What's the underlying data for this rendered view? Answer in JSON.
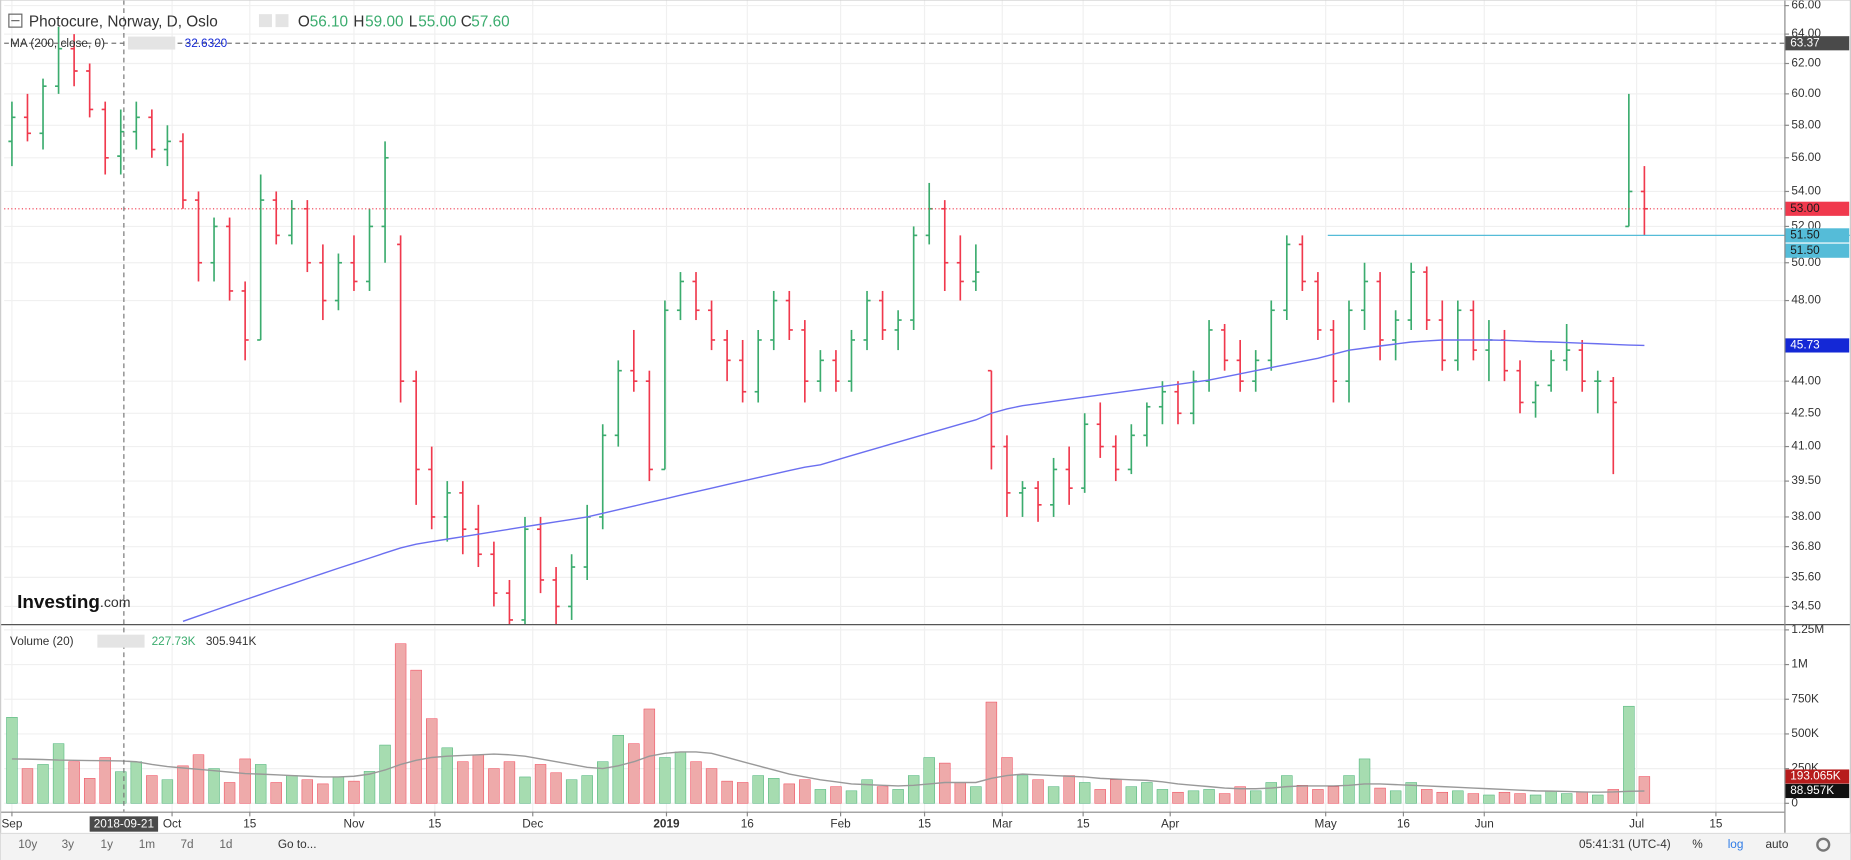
{
  "chart_data": {
    "type": "ohlc",
    "title": "Photocure, Norway, D, Oslo",
    "legend": {
      "o_key": "O",
      "o": "56.10",
      "h_key": "H",
      "h": "59.00",
      "l_key": "L",
      "l": "55.00",
      "c_key": "C",
      "c": "57.60"
    },
    "ma_title": "MA (200, close, 0)",
    "ma_value_text": "32.6320",
    "volume_title": "Volume (20)",
    "volume_value_text": "227.73K",
    "volume_ma_value_text": "305.941K",
    "logo": {
      "main": "Investing",
      "suffix": ".com"
    },
    "log_scale": true,
    "grid": true,
    "xlim": [
      -0.5,
      114
    ],
    "xticks": [
      {
        "value": 0,
        "label": "Sep"
      },
      {
        "value": 10.3,
        "label": "Oct"
      },
      {
        "value": 15.3,
        "label": "15"
      },
      {
        "value": 22,
        "label": "Nov"
      },
      {
        "value": 27.2,
        "label": "15"
      },
      {
        "value": 33.5,
        "label": "Dec"
      },
      {
        "value": 42.1,
        "label": "2019"
      },
      {
        "value": 47.3,
        "label": "16"
      },
      {
        "value": 53.3,
        "label": "Feb"
      },
      {
        "value": 58.7,
        "label": "15"
      },
      {
        "value": 63.7,
        "label": "Mar"
      },
      {
        "value": 68.9,
        "label": "15"
      },
      {
        "value": 74.5,
        "label": "Apr"
      },
      {
        "value": 84.5,
        "label": "May"
      },
      {
        "value": 89.5,
        "label": "16"
      },
      {
        "value": 94.7,
        "label": "Jun"
      },
      {
        "value": 104.5,
        "label": "Jul"
      },
      {
        "value": 109.6,
        "label": "15"
      }
    ],
    "ylim": [
      33.85,
      66.4
    ],
    "yticks": [
      {
        "value": 34.5,
        "label": "34.50"
      },
      {
        "value": 35.6,
        "label": "35.60"
      },
      {
        "value": 36.8,
        "label": "36.80"
      },
      {
        "value": 38,
        "label": "38.00"
      },
      {
        "value": 39.5,
        "label": "39.50"
      },
      {
        "value": 41,
        "label": "41.00"
      },
      {
        "value": 42.5,
        "label": "42.50"
      },
      {
        "value": 44,
        "label": "44.00"
      },
      {
        "value": 48,
        "label": "48.00"
      },
      {
        "value": 50,
        "label": "50.00"
      },
      {
        "value": 52,
        "label": "52.00"
      },
      {
        "value": 54,
        "label": "54.00"
      },
      {
        "value": 56,
        "label": "56.00"
      },
      {
        "value": 58,
        "label": "58.00"
      },
      {
        "value": 60,
        "label": "60.00"
      },
      {
        "value": 62,
        "label": "62.00"
      },
      {
        "value": 64,
        "label": "64.00"
      },
      {
        "value": 66,
        "label": "66.00"
      }
    ],
    "vlim": [
      -60000,
      1275000
    ],
    "vticks": [
      0,
      {
        "value": 250000,
        "label": "250K"
      },
      {
        "value": 500000,
        "label": "500K"
      },
      {
        "value": 750000,
        "label": "750K"
      },
      {
        "value": 1000000,
        "label": "1M"
      },
      {
        "value": 1250000,
        "label": "1.25M"
      }
    ],
    "up_color": "#3bac6e",
    "down_color": "#f0394d",
    "vol_up_color": "#a6dcb0",
    "vol_down_color": "#eeaaaa",
    "open": [
      57,
      58.5,
      57.5,
      60.5,
      63,
      61.5,
      59,
      56.1,
      57.6,
      58.5,
      56.5,
      57,
      53.5,
      50,
      52,
      48.5,
      46,
      53.5,
      51.5,
      53,
      50,
      48,
      50,
      49,
      52,
      51,
      44,
      40,
      38,
      39,
      37.5,
      36.5,
      35,
      34,
      37.5,
      35.5,
      34.5,
      36,
      38,
      41.5,
      44.5,
      44,
      40,
      47.5,
      49,
      47.5,
      46,
      45,
      43.5,
      46,
      48,
      46.5,
      44,
      45,
      44,
      46,
      48,
      46.5,
      47,
      51.5,
      53,
      50,
      49,
      44.5,
      41,
      39,
      39.2,
      38.5,
      40,
      39.2,
      42,
      41,
      40,
      41.5,
      42.8,
      43.5,
      42.5,
      44,
      46.5,
      45,
      44,
      45,
      47.5,
      51,
      49,
      46.5,
      44,
      47.5,
      49,
      46,
      47,
      49.5,
      47,
      45,
      47.5,
      45.5,
      46,
      44.5,
      43,
      43.8,
      45,
      45.5,
      44,
      44,
      52,
      54
    ],
    "high": [
      59.5,
      60,
      61,
      64.5,
      64,
      62,
      59.5,
      59,
      59.5,
      59,
      58,
      57.5,
      54,
      52.5,
      52.5,
      49,
      55,
      54,
      53.5,
      53.5,
      51,
      50.5,
      51.5,
      53,
      57,
      51.5,
      44.5,
      41,
      39.5,
      39.5,
      38.5,
      37,
      35.5,
      38,
      38,
      36,
      36.5,
      38.5,
      42,
      45,
      46.5,
      44.5,
      48,
      49.5,
      49.5,
      48,
      46.5,
      46,
      46.5,
      48.5,
      48.5,
      47,
      45.5,
      45.5,
      46.5,
      48.5,
      48.5,
      47.5,
      52,
      54.5,
      53.5,
      51.5,
      51,
      44.5,
      41.5,
      39.5,
      39.5,
      40.5,
      41,
      42.5,
      43,
      41.5,
      42,
      43,
      44,
      44,
      44.5,
      47,
      46.8,
      46,
      45.5,
      48,
      51.5,
      51.5,
      49.5,
      47,
      48,
      50,
      49.5,
      47.5,
      50,
      49.8,
      48,
      48,
      48,
      47,
      46.5,
      45,
      44,
      45.5,
      46.8,
      46,
      44.5,
      44.2,
      60,
      55.5
    ],
    "low": [
      55.5,
      57,
      56.5,
      60,
      60.5,
      58.5,
      55,
      55,
      56.5,
      56,
      55.5,
      53,
      49,
      49,
      48,
      45,
      46,
      51,
      51,
      49.5,
      47,
      47.5,
      48.5,
      48.5,
      50,
      43,
      38.5,
      37.5,
      37,
      36.5,
      36,
      34.5,
      33.5,
      33.8,
      35,
      33.5,
      34,
      35.5,
      37.5,
      41,
      43.5,
      39.5,
      40,
      47,
      47,
      45.5,
      44,
      43,
      43,
      45.5,
      46,
      43,
      43.5,
      43.5,
      43.5,
      45.5,
      46,
      45.5,
      46.5,
      51,
      48.5,
      48,
      48.5,
      40,
      38,
      38,
      37.8,
      38,
      38.5,
      39,
      40.5,
      39.5,
      39.8,
      41,
      42,
      42,
      42,
      43.5,
      44.5,
      43.5,
      43.5,
      44.5,
      47,
      48.5,
      46,
      43,
      43,
      46.5,
      45,
      45,
      46.5,
      46.5,
      44.5,
      44.5,
      45,
      44,
      44,
      42.5,
      42.3,
      43.5,
      44.5,
      43.5,
      42.5,
      39.8,
      52,
      51.5
    ],
    "close": [
      58.5,
      57.5,
      60.5,
      63,
      61.5,
      59,
      56,
      57.6,
      58.5,
      56.5,
      57,
      53.5,
      50,
      52,
      48.5,
      46,
      53.5,
      51.5,
      53,
      50,
      48,
      50,
      49,
      52,
      56,
      44,
      40,
      38,
      39,
      37.5,
      36.5,
      35,
      34,
      37.5,
      35.5,
      34.5,
      36,
      38,
      41.5,
      44.5,
      44,
      40,
      47.5,
      49,
      47.5,
      46,
      45,
      43.5,
      46,
      48,
      46.5,
      44,
      45,
      44,
      46,
      48,
      46.5,
      47,
      51.5,
      53,
      50,
      49,
      49.5,
      41,
      39,
      39.2,
      38.5,
      40,
      39.2,
      42,
      41,
      40,
      41.5,
      42.8,
      43.5,
      42.5,
      44,
      46.5,
      45,
      44,
      45,
      47.5,
      51,
      49,
      46.5,
      44,
      47.5,
      49,
      46,
      47,
      49.5,
      47,
      45,
      47.5,
      45.5,
      46,
      44.5,
      43,
      43.8,
      45,
      45.5,
      44,
      44,
      43,
      54,
      53
    ],
    "ma": {
      "color": "#6b6ff0",
      "label": "45.73",
      "label_color": "#1428d6",
      "values": [
        null,
        null,
        null,
        null,
        null,
        null,
        null,
        null,
        null,
        null,
        null,
        33.95,
        34.15,
        34.35,
        34.55,
        34.75,
        34.95,
        35.15,
        35.35,
        35.55,
        35.75,
        35.95,
        36.15,
        36.35,
        36.55,
        36.75,
        36.9,
        37,
        37.1,
        37.2,
        37.3,
        37.4,
        37.5,
        37.6,
        37.7,
        37.8,
        37.9,
        38,
        38.15,
        38.3,
        38.45,
        38.6,
        38.75,
        38.9,
        39.05,
        39.2,
        39.35,
        39.5,
        39.65,
        39.8,
        39.95,
        40.1,
        40.2,
        40.4,
        40.6,
        40.8,
        41,
        41.2,
        41.4,
        41.6,
        41.8,
        42,
        42.2,
        42.5,
        42.7,
        42.85,
        42.95,
        43.05,
        43.15,
        43.25,
        43.35,
        43.45,
        43.55,
        43.65,
        43.75,
        43.85,
        43.95,
        44.05,
        44.2,
        44.35,
        44.5,
        44.65,
        44.8,
        44.95,
        45.1,
        45.3,
        45.5,
        45.6,
        45.7,
        45.8,
        45.9,
        45.95,
        46,
        46,
        46,
        46,
        45.98,
        45.95,
        45.92,
        45.9,
        45.87,
        45.84,
        45.81,
        45.78,
        45.75,
        45.73
      ]
    },
    "volume": {
      "label": "193.065K",
      "values": [
        620000,
        250000,
        280000,
        430000,
        300000,
        180000,
        330000,
        227730,
        300000,
        200000,
        170000,
        270000,
        350000,
        250000,
        150000,
        320000,
        280000,
        150000,
        200000,
        170000,
        140000,
        190000,
        160000,
        230000,
        420000,
        1150000,
        960000,
        610000,
        400000,
        300000,
        350000,
        250000,
        300000,
        190000,
        280000,
        220000,
        170000,
        200000,
        300000,
        490000,
        430000,
        680000,
        330000,
        370000,
        300000,
        250000,
        160000,
        150000,
        200000,
        180000,
        140000,
        170000,
        100000,
        120000,
        90000,
        170000,
        120000,
        100000,
        200000,
        330000,
        290000,
        150000,
        120000,
        730000,
        330000,
        200000,
        170000,
        120000,
        200000,
        150000,
        100000,
        170000,
        120000,
        150000,
        100000,
        80000,
        90000,
        100000,
        70000,
        120000,
        90000,
        150000,
        200000,
        130000,
        100000,
        120000,
        200000,
        320000,
        110000,
        90000,
        150000,
        100000,
        80000,
        90000,
        70000,
        60000,
        80000,
        70000,
        60000,
        90000,
        70000,
        80000,
        60000,
        100000,
        700000,
        193065
      ]
    },
    "volume_ma": {
      "color": "#999999",
      "label": "88.957K",
      "values": [
        320000,
        318000,
        316000,
        312000,
        310000,
        308000,
        307000,
        305941,
        300000,
        280000,
        265000,
        255000,
        245000,
        235000,
        225000,
        215000,
        210000,
        205000,
        200000,
        195000,
        190000,
        190000,
        195000,
        210000,
        240000,
        280000,
        310000,
        330000,
        340000,
        345000,
        350000,
        355000,
        350000,
        340000,
        320000,
        300000,
        280000,
        260000,
        250000,
        270000,
        300000,
        340000,
        360000,
        370000,
        370000,
        360000,
        330000,
        300000,
        270000,
        240000,
        210000,
        190000,
        170000,
        155000,
        140000,
        135000,
        130000,
        125000,
        130000,
        140000,
        150000,
        150000,
        150000,
        180000,
        200000,
        210000,
        205000,
        200000,
        195000,
        190000,
        180000,
        175000,
        170000,
        165000,
        155000,
        140000,
        130000,
        120000,
        110000,
        105000,
        105000,
        110000,
        120000,
        125000,
        125000,
        125000,
        130000,
        140000,
        140000,
        135000,
        130000,
        125000,
        120000,
        115000,
        110000,
        105000,
        100000,
        95000,
        90000,
        88000,
        85000,
        82000,
        80000,
        82000,
        86000,
        88957
      ]
    },
    "crosshair": {
      "x": 7.2,
      "x_label": "2018-09-21",
      "y": 63.37,
      "y_label": "63.37"
    },
    "price_lines": [
      {
        "value": 53,
        "label": "53.00",
        "color": "#f0394d",
        "style": "dotted"
      },
      {
        "value": 51.5,
        "label": "51.50",
        "color": "#55bcd8",
        "style": "ray"
      },
      {
        "value": 51.5,
        "label": "51.50",
        "color": "#55bcd8",
        "style": "none"
      }
    ]
  },
  "toolbar": {
    "ranges": [
      "10y",
      "3y",
      "1y",
      "1m",
      "7d",
      "1d"
    ],
    "goto": "Go to...",
    "time": "05:41:31 (UTC-4)",
    "percent": "%",
    "log": "log",
    "auto": "auto"
  }
}
